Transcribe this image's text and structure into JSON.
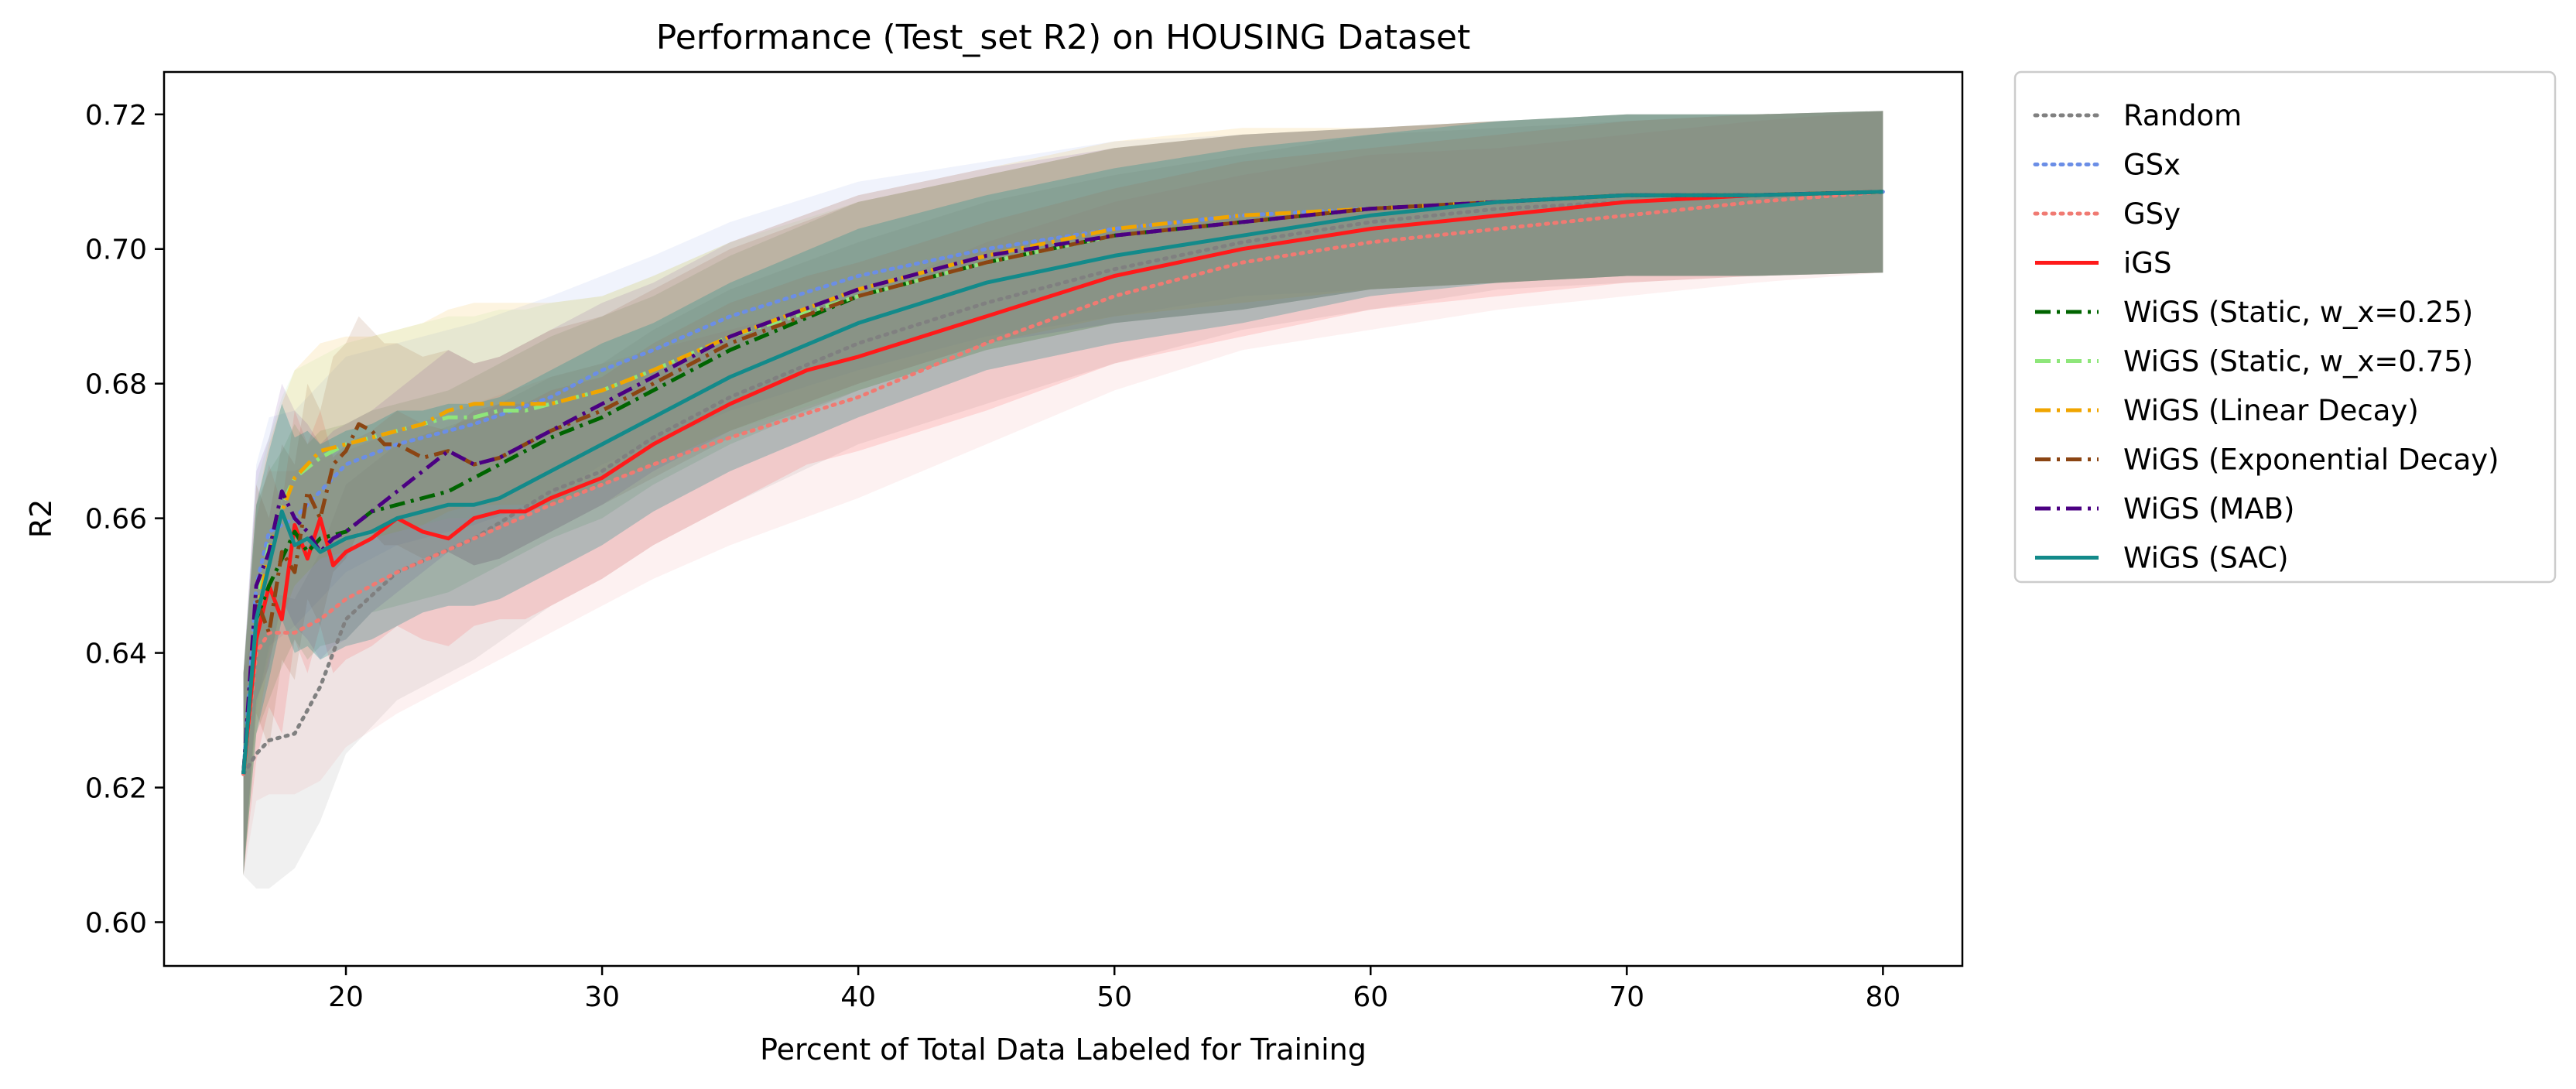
{
  "chart_data": {
    "type": "line",
    "title": "Performance (Test_set R2) on HOUSING Dataset",
    "xlabel": "Percent of Total Data Labeled for Training",
    "ylabel": "R2",
    "xlim": [
      12.9,
      83.1
    ],
    "ylim": [
      0.5935,
      0.7263
    ],
    "xticks": [
      20,
      30,
      40,
      50,
      60,
      70,
      80
    ],
    "yticks": [
      0.6,
      0.62,
      0.64,
      0.66,
      0.68,
      0.7,
      0.72
    ],
    "xtick_labels": [
      "20",
      "30",
      "40",
      "50",
      "60",
      "70",
      "80"
    ],
    "ytick_labels": [
      "0.60",
      "0.62",
      "0.64",
      "0.66",
      "0.68",
      "0.70",
      "0.72"
    ],
    "grid": false,
    "legend_position": "outside-right",
    "series": [
      {
        "name": "Random",
        "color": "#808080",
        "style": "dotted",
        "x": [
          16,
          16.5,
          17,
          18,
          19,
          20,
          22,
          25,
          28,
          30,
          32,
          35,
          40,
          45,
          50,
          55,
          60,
          65,
          70,
          75,
          80
        ],
        "y": [
          0.622,
          0.625,
          0.627,
          0.628,
          0.635,
          0.645,
          0.652,
          0.657,
          0.664,
          0.667,
          0.672,
          0.678,
          0.686,
          0.692,
          0.697,
          0.701,
          0.704,
          0.706,
          0.707,
          0.708,
          0.7085
        ],
        "band": [
          0.015,
          0.02,
          0.022,
          0.02,
          0.02,
          0.02,
          0.019,
          0.018,
          0.017,
          0.016,
          0.016,
          0.016,
          0.015,
          0.015,
          0.014,
          0.013,
          0.013,
          0.012,
          0.012,
          0.012,
          0.012
        ],
        "band_opacity": 0.12
      },
      {
        "name": "GSx",
        "color": "#6b8ee6",
        "style": "dotted",
        "x": [
          16,
          16.5,
          17,
          18,
          19,
          20,
          22,
          25,
          28,
          30,
          32,
          35,
          40,
          45,
          50,
          55,
          60,
          65,
          70,
          75,
          80
        ],
        "y": [
          0.622,
          0.65,
          0.658,
          0.66,
          0.664,
          0.668,
          0.671,
          0.674,
          0.678,
          0.682,
          0.685,
          0.69,
          0.696,
          0.7,
          0.703,
          0.705,
          0.706,
          0.707,
          0.708,
          0.708,
          0.7085
        ],
        "band": [
          0.015,
          0.018,
          0.017,
          0.016,
          0.016,
          0.016,
          0.015,
          0.015,
          0.015,
          0.014,
          0.014,
          0.014,
          0.014,
          0.013,
          0.013,
          0.012,
          0.012,
          0.012,
          0.012,
          0.012,
          0.012
        ],
        "band_opacity": 0.1
      },
      {
        "name": "GSy",
        "color": "#f07a72",
        "style": "dotted",
        "x": [
          16,
          16.5,
          17,
          18,
          19,
          20,
          22,
          25,
          28,
          30,
          32,
          35,
          40,
          45,
          50,
          55,
          60,
          65,
          70,
          75,
          80
        ],
        "y": [
          0.622,
          0.64,
          0.643,
          0.643,
          0.645,
          0.648,
          0.652,
          0.657,
          0.662,
          0.665,
          0.668,
          0.672,
          0.678,
          0.686,
          0.693,
          0.698,
          0.701,
          0.703,
          0.705,
          0.707,
          0.7085
        ],
        "band": [
          0.015,
          0.022,
          0.024,
          0.024,
          0.024,
          0.022,
          0.021,
          0.02,
          0.019,
          0.018,
          0.017,
          0.016,
          0.015,
          0.015,
          0.014,
          0.013,
          0.013,
          0.012,
          0.012,
          0.012,
          0.012
        ],
        "band_opacity": 0.1
      },
      {
        "name": "iGS",
        "color": "#ff1a1a",
        "style": "solid",
        "x": [
          16,
          16.5,
          17,
          17.5,
          18,
          18.5,
          19,
          19.5,
          20,
          21,
          22,
          23,
          24,
          25,
          26,
          27,
          28,
          30,
          32,
          35,
          38,
          40,
          45,
          50,
          55,
          60,
          65,
          70,
          75,
          80
        ],
        "y": [
          0.622,
          0.642,
          0.65,
          0.645,
          0.659,
          0.654,
          0.66,
          0.653,
          0.655,
          0.657,
          0.66,
          0.658,
          0.657,
          0.66,
          0.661,
          0.661,
          0.663,
          0.666,
          0.671,
          0.677,
          0.682,
          0.684,
          0.69,
          0.696,
          0.7,
          0.703,
          0.705,
          0.707,
          0.708,
          0.7085
        ],
        "band": [
          0.015,
          0.018,
          0.018,
          0.017,
          0.017,
          0.017,
          0.016,
          0.016,
          0.016,
          0.016,
          0.016,
          0.016,
          0.016,
          0.016,
          0.016,
          0.016,
          0.016,
          0.015,
          0.015,
          0.015,
          0.014,
          0.014,
          0.014,
          0.013,
          0.013,
          0.012,
          0.012,
          0.012,
          0.012,
          0.012
        ],
        "band_opacity": 0.12
      },
      {
        "name": "WiGS (Static, w_x=0.25)",
        "color": "#006400",
        "style": "dashdot",
        "x": [
          16,
          16.5,
          17,
          17.5,
          18,
          18.5,
          19,
          20,
          21,
          22,
          23,
          24,
          25,
          26,
          27,
          28,
          30,
          32,
          35,
          40,
          45,
          50,
          55,
          60,
          65,
          70,
          75,
          80
        ],
        "y": [
          0.622,
          0.645,
          0.65,
          0.654,
          0.658,
          0.655,
          0.657,
          0.658,
          0.661,
          0.662,
          0.663,
          0.664,
          0.666,
          0.668,
          0.67,
          0.672,
          0.675,
          0.679,
          0.685,
          0.693,
          0.698,
          0.702,
          0.704,
          0.706,
          0.707,
          0.708,
          0.708,
          0.7085
        ],
        "band": [
          0.015,
          0.017,
          0.017,
          0.016,
          0.016,
          0.016,
          0.016,
          0.016,
          0.015,
          0.015,
          0.015,
          0.015,
          0.015,
          0.015,
          0.015,
          0.015,
          0.015,
          0.014,
          0.014,
          0.014,
          0.013,
          0.013,
          0.013,
          0.012,
          0.012,
          0.012,
          0.012,
          0.012
        ],
        "band_opacity": 0.1
      },
      {
        "name": "WiGS (Static, w_x=0.75)",
        "color": "#8ee67a",
        "style": "dashdot",
        "x": [
          16,
          16.5,
          17,
          17.5,
          18,
          19,
          20,
          21,
          22,
          23,
          24,
          25,
          26,
          27,
          28,
          30,
          32,
          35,
          40,
          45,
          50,
          55,
          60,
          65,
          70,
          75,
          80
        ],
        "y": [
          0.622,
          0.648,
          0.656,
          0.662,
          0.666,
          0.669,
          0.671,
          0.672,
          0.673,
          0.674,
          0.675,
          0.675,
          0.676,
          0.676,
          0.677,
          0.679,
          0.682,
          0.687,
          0.693,
          0.698,
          0.702,
          0.704,
          0.706,
          0.707,
          0.708,
          0.708,
          0.7085
        ],
        "band": [
          0.015,
          0.017,
          0.016,
          0.016,
          0.016,
          0.015,
          0.015,
          0.015,
          0.015,
          0.015,
          0.015,
          0.015,
          0.015,
          0.015,
          0.015,
          0.014,
          0.014,
          0.014,
          0.014,
          0.013,
          0.013,
          0.013,
          0.012,
          0.012,
          0.012,
          0.012,
          0.012
        ],
        "band_opacity": 0.1
      },
      {
        "name": "WiGS (Linear Decay)",
        "color": "#f0a500",
        "style": "dashdot",
        "x": [
          16,
          16.5,
          17,
          17.5,
          18,
          19,
          20,
          21,
          22,
          23,
          24,
          25,
          26,
          27,
          28,
          30,
          32,
          35,
          40,
          45,
          50,
          55,
          60,
          65,
          70,
          75,
          80
        ],
        "y": [
          0.622,
          0.645,
          0.655,
          0.661,
          0.666,
          0.67,
          0.671,
          0.672,
          0.673,
          0.674,
          0.676,
          0.677,
          0.677,
          0.677,
          0.677,
          0.679,
          0.682,
          0.687,
          0.694,
          0.699,
          0.703,
          0.705,
          0.706,
          0.707,
          0.708,
          0.708,
          0.7085
        ],
        "band": [
          0.015,
          0.017,
          0.016,
          0.016,
          0.016,
          0.016,
          0.016,
          0.015,
          0.015,
          0.015,
          0.015,
          0.015,
          0.015,
          0.015,
          0.015,
          0.014,
          0.014,
          0.014,
          0.014,
          0.013,
          0.013,
          0.013,
          0.012,
          0.012,
          0.012,
          0.012,
          0.012
        ],
        "band_opacity": 0.12
      },
      {
        "name": "WiGS (Exponential Decay)",
        "color": "#8b4513",
        "style": "dashdot",
        "x": [
          16,
          16.5,
          17,
          17.5,
          18,
          18.5,
          19,
          19.5,
          20,
          20.5,
          21,
          21.5,
          22,
          23,
          24,
          25,
          26,
          27,
          28,
          30,
          32,
          35,
          40,
          45,
          50,
          55,
          60,
          65,
          70,
          75,
          80
        ],
        "y": [
          0.622,
          0.648,
          0.643,
          0.655,
          0.652,
          0.664,
          0.66,
          0.668,
          0.67,
          0.674,
          0.673,
          0.671,
          0.671,
          0.669,
          0.67,
          0.668,
          0.669,
          0.671,
          0.673,
          0.676,
          0.68,
          0.686,
          0.693,
          0.698,
          0.702,
          0.704,
          0.706,
          0.707,
          0.708,
          0.708,
          0.7085
        ],
        "band": [
          0.015,
          0.017,
          0.017,
          0.016,
          0.016,
          0.016,
          0.016,
          0.016,
          0.016,
          0.016,
          0.015,
          0.015,
          0.015,
          0.015,
          0.015,
          0.015,
          0.015,
          0.015,
          0.015,
          0.014,
          0.014,
          0.014,
          0.014,
          0.013,
          0.013,
          0.013,
          0.012,
          0.012,
          0.012,
          0.012,
          0.012
        ],
        "band_opacity": 0.12
      },
      {
        "name": "WiGS (MAB)",
        "color": "#4b0082",
        "style": "dashdot",
        "x": [
          16,
          16.5,
          17,
          17.5,
          18,
          18.5,
          19,
          19.5,
          20,
          21,
          22,
          23,
          24,
          25,
          26,
          27,
          28,
          30,
          32,
          35,
          40,
          45,
          50,
          55,
          60,
          65,
          70,
          75,
          80
        ],
        "y": [
          0.622,
          0.65,
          0.655,
          0.664,
          0.66,
          0.658,
          0.655,
          0.657,
          0.658,
          0.661,
          0.664,
          0.667,
          0.67,
          0.668,
          0.669,
          0.671,
          0.673,
          0.677,
          0.681,
          0.687,
          0.694,
          0.699,
          0.702,
          0.704,
          0.706,
          0.707,
          0.708,
          0.708,
          0.7085
        ],
        "band": [
          0.015,
          0.017,
          0.017,
          0.016,
          0.016,
          0.016,
          0.016,
          0.016,
          0.016,
          0.015,
          0.015,
          0.015,
          0.015,
          0.015,
          0.015,
          0.015,
          0.015,
          0.015,
          0.014,
          0.014,
          0.014,
          0.013,
          0.013,
          0.013,
          0.012,
          0.012,
          0.012,
          0.012,
          0.012
        ],
        "band_opacity": 0.1
      },
      {
        "name": "WiGS (SAC)",
        "color": "#138a8a",
        "style": "solid",
        "x": [
          16,
          16.5,
          17,
          17.5,
          18,
          18.5,
          19,
          20,
          21,
          22,
          23,
          24,
          25,
          26,
          27,
          28,
          30,
          32,
          35,
          40,
          45,
          50,
          55,
          60,
          65,
          70,
          75,
          80
        ],
        "y": [
          0.622,
          0.645,
          0.653,
          0.661,
          0.656,
          0.657,
          0.655,
          0.657,
          0.658,
          0.66,
          0.661,
          0.662,
          0.662,
          0.663,
          0.665,
          0.667,
          0.671,
          0.675,
          0.681,
          0.689,
          0.695,
          0.699,
          0.702,
          0.705,
          0.707,
          0.708,
          0.708,
          0.7085
        ],
        "band": [
          0.015,
          0.017,
          0.017,
          0.016,
          0.016,
          0.016,
          0.016,
          0.016,
          0.016,
          0.016,
          0.015,
          0.015,
          0.015,
          0.015,
          0.015,
          0.015,
          0.015,
          0.014,
          0.014,
          0.014,
          0.013,
          0.013,
          0.013,
          0.012,
          0.012,
          0.012,
          0.012,
          0.012
        ],
        "band_opacity": 0.28
      }
    ]
  }
}
